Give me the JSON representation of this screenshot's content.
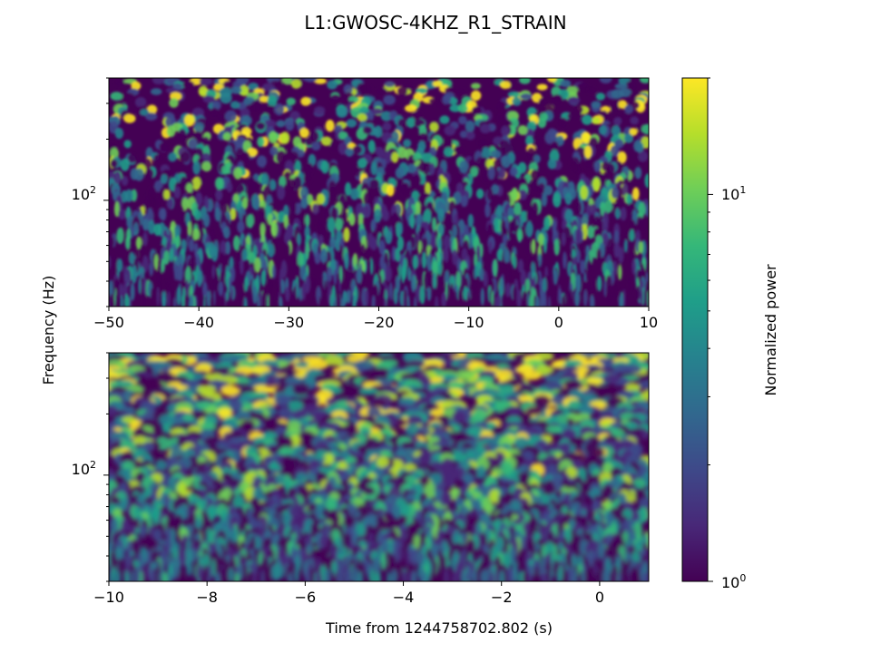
{
  "figure": {
    "title": "L1:GWOSC-4KHZ_R1_STRAIN",
    "ylabel": "Frequency (Hz)",
    "xlabel": "Time from 1244758702.802 (s)"
  },
  "chart_data": [
    {
      "type": "heatmap",
      "panel": "top",
      "x_range": [
        -50,
        10
      ],
      "x_ticks": [
        -50,
        -40,
        -30,
        -20,
        -10,
        0,
        10
      ],
      "x_tick_labels": [
        "−50",
        "−40",
        "−30",
        "−20",
        "−10",
        "0",
        "10"
      ],
      "y_scale": "log",
      "y_range": [
        30,
        400
      ],
      "y_ticks": [
        100
      ],
      "y_tick_labels": [
        "10",
        "2"
      ],
      "colormap": "viridis",
      "color_scale": "log",
      "color_range": [
        1,
        20
      ]
    },
    {
      "type": "heatmap",
      "panel": "bottom",
      "x_range": [
        -10,
        1
      ],
      "x_ticks": [
        -10,
        -8,
        -6,
        -4,
        -2,
        0
      ],
      "x_tick_labels": [
        "−10",
        "−8",
        "−6",
        "−4",
        "−2",
        "0"
      ],
      "y_scale": "log",
      "y_range": [
        30,
        400
      ],
      "y_ticks": [
        100
      ],
      "y_tick_labels": [
        "10",
        "2"
      ],
      "colormap": "viridis",
      "color_scale": "log",
      "color_range": [
        1,
        20
      ]
    }
  ],
  "colorbar": {
    "label": "Normalized power",
    "scale": "log",
    "range": [
      1,
      20
    ],
    "ticks": [
      {
        "value": 1,
        "base": "10",
        "exp": "0"
      },
      {
        "value": 10,
        "base": "10",
        "exp": "1"
      }
    ],
    "colors": [
      "#440154",
      "#482878",
      "#3e4989",
      "#31688e",
      "#26828e",
      "#1f9e89",
      "#35b779",
      "#6ece58",
      "#b5de2b",
      "#fde725"
    ]
  }
}
